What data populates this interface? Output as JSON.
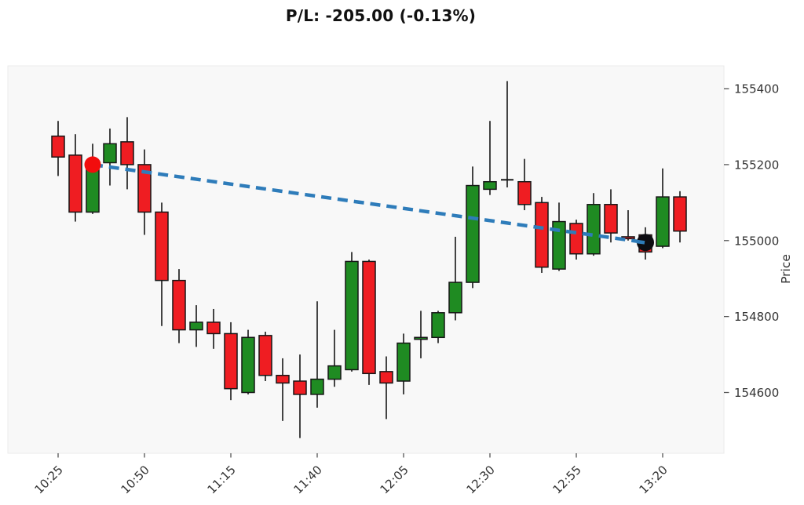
{
  "title": "P/L: -205.00 (-0.13%)",
  "chart_data": {
    "type": "candlestick",
    "title": "P/L: -205.00 (-0.13%)",
    "ylabel": "Price",
    "interval_minutes": 5,
    "grid": false,
    "price_axis_side": "right",
    "ylim": [
      154440,
      155460
    ],
    "y_ticks": [
      155400,
      155200,
      155000,
      154800,
      154600
    ],
    "x_ticks": [
      {
        "index": 0,
        "label": "10:25"
      },
      {
        "index": 5,
        "label": "10:50"
      },
      {
        "index": 10,
        "label": "11:15"
      },
      {
        "index": 15,
        "label": "11:40"
      },
      {
        "index": 20,
        "label": "12:05"
      },
      {
        "index": 25,
        "label": "12:30"
      },
      {
        "index": 30,
        "label": "12:55"
      },
      {
        "index": 35,
        "label": "13:20"
      }
    ],
    "times": [
      "10:25",
      "10:30",
      "10:35",
      "10:40",
      "10:45",
      "10:50",
      "10:55",
      "11:00",
      "11:05",
      "11:10",
      "11:15",
      "11:20",
      "11:25",
      "11:30",
      "11:35",
      "11:40",
      "11:45",
      "11:50",
      "11:55",
      "12:00",
      "12:05",
      "12:10",
      "12:15",
      "12:20",
      "12:25",
      "12:30",
      "12:35",
      "12:40",
      "12:45",
      "12:50",
      "12:55",
      "13:00",
      "13:05",
      "13:10",
      "13:15",
      "13:20",
      "13:25"
    ],
    "ohlc_columns": [
      "open",
      "high",
      "low",
      "close"
    ],
    "ohlc": [
      [
        155275,
        155315,
        155170,
        155220
      ],
      [
        155225,
        155280,
        155050,
        155075
      ],
      [
        155075,
        155255,
        155070,
        155210
      ],
      [
        155205,
        155295,
        155145,
        155255
      ],
      [
        155260,
        155325,
        155135,
        155200
      ],
      [
        155200,
        155240,
        155015,
        155075
      ],
      [
        155075,
        155100,
        154775,
        154895
      ],
      [
        154895,
        154925,
        154730,
        154765
      ],
      [
        154765,
        154830,
        154720,
        154785
      ],
      [
        154785,
        154820,
        154715,
        154755
      ],
      [
        154755,
        154785,
        154580,
        154610
      ],
      [
        154600,
        154765,
        154595,
        154745
      ],
      [
        154750,
        154760,
        154630,
        154645
      ],
      [
        154645,
        154690,
        154525,
        154625
      ],
      [
        154630,
        154700,
        154480,
        154595
      ],
      [
        154595,
        154840,
        154560,
        154635
      ],
      [
        154635,
        154765,
        154615,
        154670
      ],
      [
        154660,
        154970,
        154655,
        154945
      ],
      [
        154945,
        154950,
        154620,
        154650
      ],
      [
        154655,
        154695,
        154530,
        154625
      ],
      [
        154630,
        154755,
        154595,
        154730
      ],
      [
        154740,
        154815,
        154690,
        154745
      ],
      [
        154745,
        154815,
        154730,
        154810
      ],
      [
        154810,
        155010,
        154790,
        154890
      ],
      [
        154890,
        155195,
        154875,
        155145
      ],
      [
        155135,
        155315,
        155120,
        155155
      ],
      [
        155160,
        155420,
        155140,
        155160
      ],
      [
        155155,
        155215,
        155080,
        155095
      ],
      [
        155100,
        155115,
        154915,
        154930
      ],
      [
        154925,
        155100,
        154920,
        155050
      ],
      [
        155045,
        155055,
        154950,
        154965
      ],
      [
        154965,
        155125,
        154960,
        155095
      ],
      [
        155095,
        155135,
        154995,
        155020
      ],
      [
        155010,
        155080,
        155000,
        155005
      ],
      [
        155015,
        155035,
        154950,
        154970
      ],
      [
        154985,
        155190,
        154980,
        155115
      ],
      [
        155115,
        155130,
        154995,
        155025
      ]
    ],
    "trade": {
      "entry": {
        "time": "10:35",
        "index": 2,
        "price": 155200
      },
      "exit": {
        "time": "13:15",
        "index": 34,
        "price": 154995
      },
      "pnl": -205.0,
      "pnl_pct": -0.13
    },
    "colors": {
      "up": "#1f8b22",
      "down": "#ef1d22",
      "edge": "#161616",
      "wick": "#161616",
      "doji": "#161616",
      "trade_line": "#2e7cba",
      "entry_marker": "#f20d0d",
      "exit_marker": "#0d0d12",
      "plot_bg": "#f8f8f8",
      "plot_border": "#ebebeb",
      "tick_text": "#333333",
      "tick_mark": "#555555"
    }
  }
}
